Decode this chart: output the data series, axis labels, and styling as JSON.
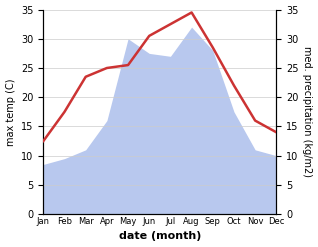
{
  "months": [
    "Jan",
    "Feb",
    "Mar",
    "Apr",
    "May",
    "Jun",
    "Jul",
    "Aug",
    "Sep",
    "Oct",
    "Nov",
    "Dec"
  ],
  "temperature": [
    12.5,
    17.5,
    23.5,
    25.0,
    25.5,
    30.5,
    32.5,
    34.5,
    28.5,
    22.0,
    16.0,
    14.0
  ],
  "precipitation": [
    8.5,
    9.5,
    11.0,
    16.0,
    30.0,
    27.5,
    27.0,
    32.0,
    28.0,
    17.5,
    11.0,
    10.0
  ],
  "temp_color": "#cc3333",
  "precip_color": "#b8c8ee",
  "ylim": [
    0,
    35
  ],
  "xlabel": "date (month)",
  "ylabel_left": "max temp (C)",
  "ylabel_right": "med. precipitation (kg/m2)",
  "background_color": "#ffffff",
  "temp_linewidth": 1.8,
  "yticks": [
    0,
    5,
    10,
    15,
    20,
    25,
    30,
    35
  ]
}
